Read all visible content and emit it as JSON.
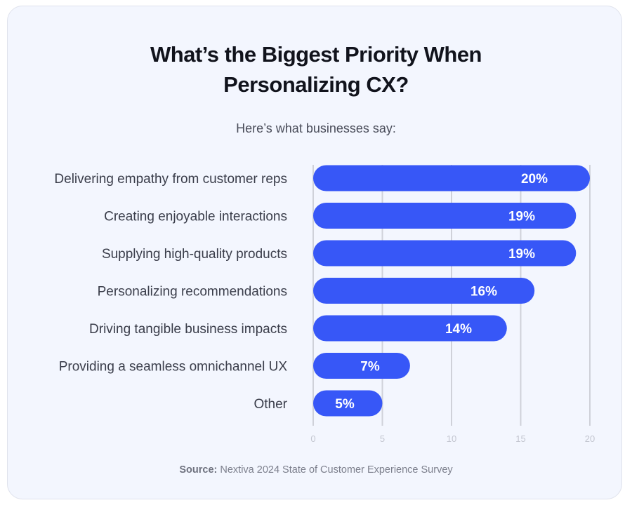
{
  "title_line1": "What’s the Biggest Priority When",
  "title_line2": "Personalizing CX?",
  "subtitle": "Here’s what businesses say:",
  "source_label": "Source:",
  "source_text": "Nextiva 2024 State of Customer Experience Survey",
  "chart_data": {
    "type": "bar",
    "orientation": "horizontal",
    "categories": [
      "Delivering empathy from customer reps",
      "Creating enjoyable interactions",
      "Supplying high-quality products",
      "Personalizing recommendations",
      "Driving tangible business impacts",
      "Providing a seamless omnichannel UX",
      "Other"
    ],
    "values": [
      20,
      19,
      19,
      16,
      14,
      7,
      5
    ],
    "data_labels": [
      "20%",
      "19%",
      "19%",
      "16%",
      "14%",
      "7%",
      "5%"
    ],
    "xlim": [
      0,
      20
    ],
    "xticks": [
      "0",
      "5",
      "10",
      "15",
      "20"
    ],
    "grid": true,
    "bar_color": "#3757f7",
    "grid_color": "#cfd1d9"
  }
}
